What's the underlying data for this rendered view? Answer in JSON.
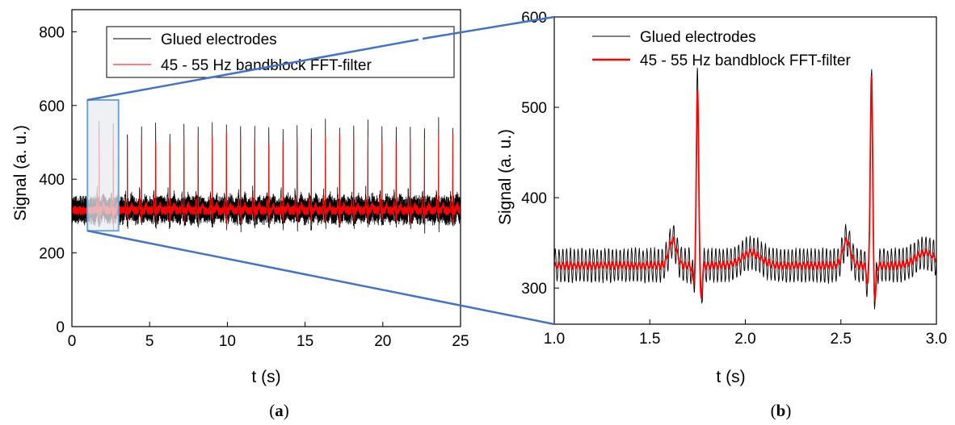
{
  "chart_data": [
    {
      "type": "line",
      "panel_label": {
        "open": "(",
        "letter": "a",
        "close": ")"
      },
      "xlabel": "t (s)",
      "ylabel": "Signal (a. u.)",
      "xlim": [
        0,
        25
      ],
      "ylim": [
        0,
        860
      ],
      "xticks": [
        0,
        5,
        10,
        15,
        20,
        25
      ],
      "yticks": [
        0,
        200,
        400,
        600,
        800
      ],
      "legend_position": "top-right",
      "zoom_box": {
        "x": [
          1.0,
          3.0
        ],
        "y": [
          260,
          615
        ]
      },
      "series": [
        {
          "name": "Glued electrodes",
          "color": "#000000",
          "baseline": 315,
          "noise_amplitude": 30,
          "noise_freq_hz": 50
        },
        {
          "name": "45 - 55 Hz bandblock FFT-filter",
          "color": "#ff0000",
          "baseline": 315,
          "noise_amplitude": 8,
          "noise_freq_hz": 50
        }
      ],
      "beats": {
        "times": [
          1.75,
          2.66,
          3.57,
          4.48,
          5.39,
          6.3,
          7.21,
          8.12,
          9.03,
          9.94,
          10.85,
          11.76,
          12.67,
          13.58,
          14.49,
          15.4,
          16.31,
          17.22,
          18.13,
          19.04,
          19.95,
          20.86,
          21.77,
          22.68,
          23.59,
          24.5
        ],
        "peak_black": [
          555,
          550,
          545,
          550,
          555,
          545,
          550,
          548,
          550,
          545,
          552,
          548,
          555,
          550,
          545,
          548,
          550,
          545,
          552,
          548,
          550,
          545,
          548,
          550,
          552,
          548
        ],
        "peak_red": [
          520,
          522,
          520,
          518,
          520,
          522,
          520,
          518,
          520,
          522,
          520,
          518,
          520,
          522,
          520,
          518,
          520,
          522,
          520,
          518,
          520,
          522,
          520,
          518,
          520,
          522
        ],
        "trough": 270
      }
    },
    {
      "type": "line",
      "panel_label": {
        "open": "(",
        "letter": "b",
        "close": ")"
      },
      "xlabel": "t (s)",
      "ylabel": "Signal (a. u.)",
      "xlim": [
        1.0,
        3.0
      ],
      "ylim": [
        260,
        600
      ],
      "xticks": [
        1.0,
        1.5,
        2.0,
        2.5,
        3.0
      ],
      "yticks": [
        300,
        400,
        500,
        600
      ],
      "ytick_labels": [
        "300",
        "400",
        "500",
        "600"
      ],
      "legend_position": "top-right",
      "series": [
        {
          "name": "Glued electrodes",
          "color": "#000000",
          "baseline": 325,
          "noise_amplitude": 18,
          "noise_freq_hz": 50
        },
        {
          "name": "45 - 55 Hz bandblock FFT-filter",
          "color": "#ff0000",
          "baseline": 325,
          "noise_amplitude": 3,
          "noise_freq_hz": 50
        }
      ],
      "beats": {
        "times": [
          1.75,
          2.66
        ],
        "peak_black": [
          540,
          540
        ],
        "peak_red": [
          520,
          535
        ],
        "trough": 277,
        "p_wave_peak": 365
      }
    }
  ],
  "colors": {
    "zoom_box_fill": "#e8ebef",
    "zoom_box_stroke": "#6aa6d8",
    "connector": "#4472c4"
  }
}
